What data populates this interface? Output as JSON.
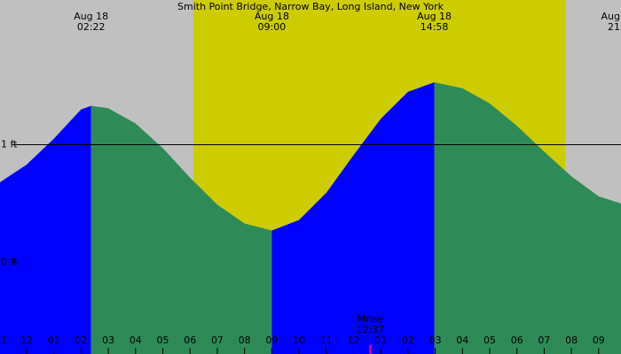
{
  "chart_data": {
    "type": "tide",
    "title": "Smith Point Bridge, Narrow Bay, Long Island, New York",
    "xlim": [
      -0.977,
      21.82
    ],
    "ylim": [
      -0.78,
      2.23
    ],
    "background_color": "#c0c0c0",
    "daylight": [
      6.12,
      19.77
    ],
    "daylight_color": "#cccc00",
    "reference_line": 1,
    "yticks": [
      {
        "value": 0,
        "label": "0 ft"
      },
      {
        "value": 1,
        "label": "1 ft"
      }
    ],
    "xticks": [
      {
        "value": -1,
        "label": "1"
      },
      {
        "value": 0,
        "label": "12"
      },
      {
        "value": 1,
        "label": "01"
      },
      {
        "value": 2,
        "label": "02"
      },
      {
        "value": 3,
        "label": "03"
      },
      {
        "value": 4,
        "label": "04"
      },
      {
        "value": 5,
        "label": "05"
      },
      {
        "value": 6,
        "label": "06"
      },
      {
        "value": 7,
        "label": "07"
      },
      {
        "value": 8,
        "label": "08"
      },
      {
        "value": 9,
        "label": "09"
      },
      10,
      11,
      12,
      {
        "value": 13,
        "label": "01"
      },
      {
        "value": 14,
        "label": "02"
      },
      {
        "value": 15,
        "label": "03"
      },
      {
        "value": 16,
        "label": "04"
      },
      {
        "value": 17,
        "label": "05"
      },
      {
        "value": 18,
        "label": "06"
      },
      {
        "value": 19,
        "label": "07"
      },
      {
        "value": 20,
        "label": "08"
      },
      {
        "value": 21,
        "label": "09"
      }
    ],
    "series": [
      {
        "color": "#0000ff",
        "x": [
          -0.977,
          0,
          1,
          2,
          2.367
        ],
        "values": [
          0.68,
          0.83,
          1.05,
          1.3,
          1.33
        ]
      },
      {
        "color": "#2e8b57",
        "x": [
          2.367,
          3,
          4,
          5,
          6,
          7,
          8,
          9
        ],
        "values": [
          1.33,
          1.31,
          1.18,
          0.97,
          0.72,
          0.49,
          0.33,
          0.27
        ]
      },
      {
        "color": "#0000ff",
        "x": [
          9,
          10,
          11,
          12,
          13,
          14,
          14.967
        ],
        "values": [
          0.27,
          0.36,
          0.59,
          0.91,
          1.22,
          1.45,
          1.53
        ]
      },
      {
        "color": "#2e8b57",
        "x": [
          14.967,
          16,
          17,
          18,
          19,
          20,
          21,
          21.82
        ],
        "values": [
          1.53,
          1.48,
          1.35,
          1.16,
          0.94,
          0.73,
          0.56,
          0.5
        ]
      }
    ],
    "extremes": [
      {
        "x": 2.367,
        "date": "Aug 18",
        "time": "02:22"
      },
      {
        "x": 9,
        "date": "Aug 18",
        "time": "09:00"
      },
      {
        "x": 14.967,
        "date": "Aug 18",
        "time": "14:58"
      },
      {
        "x": 21.8,
        "date": "Aug",
        "time": "21"
      }
    ],
    "moon_events": [
      {
        "x": 12.617,
        "label": "Mrise",
        "time": "12:37",
        "color": "#ff0080"
      }
    ]
  }
}
